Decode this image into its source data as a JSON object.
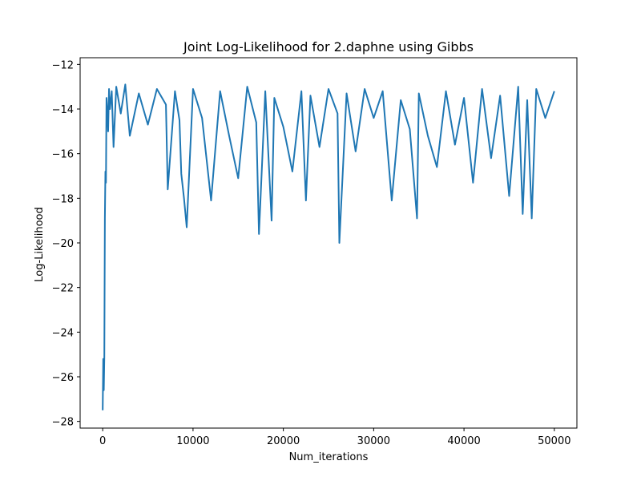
{
  "chart_data": {
    "type": "line",
    "title": "Joint Log-Likelihood for 2.daphne using Gibbs",
    "xlabel": "Num_iterations",
    "ylabel": "Log-Likelihood",
    "xlim": [
      -2500,
      52500
    ],
    "ylim": [
      -28.3,
      -11.7
    ],
    "xticks": [
      0,
      10000,
      20000,
      30000,
      40000,
      50000
    ],
    "xtick_labels": [
      "0",
      "10000",
      "20000",
      "30000",
      "40000",
      "50000"
    ],
    "yticks": [
      -28,
      -26,
      -24,
      -22,
      -20,
      -18,
      -16,
      -14,
      -12
    ],
    "ytick_labels": [
      "−28",
      "−26",
      "−24",
      "−22",
      "−20",
      "−18",
      "−16",
      "−14",
      "−12"
    ],
    "grid": false,
    "series": [
      {
        "color": "#1f77b4",
        "x": [
          0,
          60,
          120,
          180,
          240,
          300,
          360,
          420,
          500,
          600,
          700,
          800,
          1000,
          1200,
          1500,
          2000,
          2500,
          3000,
          4000,
          5000,
          6000,
          7000,
          7200,
          8000,
          8500,
          8700,
          9000,
          9300,
          10000,
          11000,
          12000,
          13000,
          14000,
          15000,
          16000,
          17000,
          17300,
          18000,
          18700,
          19000,
          20000,
          21000,
          22000,
          22500,
          23000,
          24000,
          25000,
          26000,
          26200,
          27000,
          28000,
          29000,
          30000,
          31000,
          32000,
          33000,
          34000,
          34800,
          35000,
          36000,
          37000,
          38000,
          39000,
          40000,
          41000,
          42000,
          43000,
          44000,
          45000,
          46000,
          46500,
          47000,
          47500,
          48000,
          49000,
          50000
        ],
        "y": [
          -27.5,
          -25.2,
          -26.6,
          -25.1,
          -18.9,
          -16.8,
          -17.3,
          -13.5,
          -14.0,
          -15.0,
          -13.1,
          -14.0,
          -13.2,
          -15.7,
          -13.0,
          -14.2,
          -12.9,
          -15.2,
          -13.3,
          -14.7,
          -13.1,
          -13.8,
          -17.6,
          -13.2,
          -14.5,
          -16.9,
          -18.0,
          -19.3,
          -13.1,
          -14.4,
          -18.1,
          -13.2,
          -15.2,
          -17.1,
          -13.0,
          -14.6,
          -19.6,
          -13.2,
          -19.0,
          -13.5,
          -14.8,
          -16.8,
          -13.2,
          -18.1,
          -13.4,
          -15.7,
          -13.1,
          -14.2,
          -20.0,
          -13.3,
          -15.9,
          -13.1,
          -14.4,
          -13.2,
          -18.1,
          -13.6,
          -14.9,
          -18.9,
          -13.3,
          -15.2,
          -16.6,
          -13.2,
          -15.6,
          -13.5,
          -17.3,
          -13.1,
          -16.2,
          -13.4,
          -17.9,
          -13.0,
          -18.7,
          -13.6,
          -18.9,
          -13.1,
          -14.4,
          -13.2
        ]
      }
    ]
  }
}
